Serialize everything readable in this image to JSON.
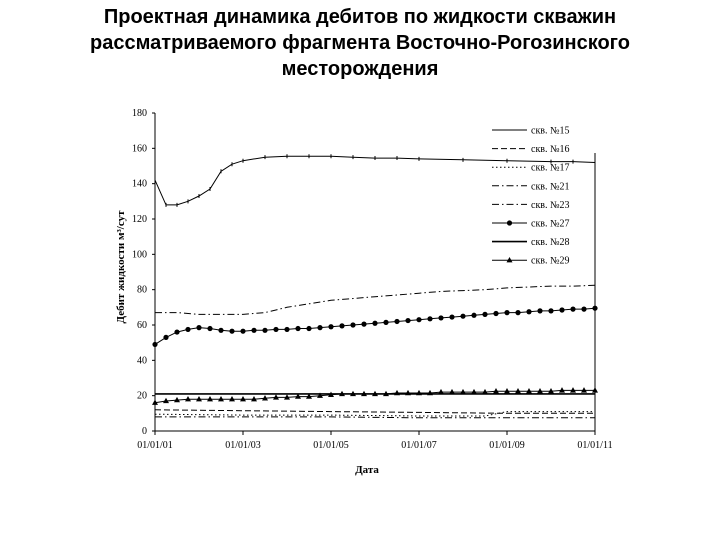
{
  "title_lines": [
    "Проектная динамика дебитов по жидкости скважин",
    "рассматриваемого фрагмента Восточно-Рогозинского",
    "месторождения"
  ],
  "chart_data": {
    "type": "line",
    "xlabel": "Дата",
    "ylabel": "Дебит жидкости м³/сут",
    "ylim": [
      0,
      180
    ],
    "yticks": [
      0,
      20,
      40,
      60,
      80,
      100,
      120,
      140,
      160,
      180
    ],
    "x_tick_labels": [
      "01/01/01",
      "01/01/03",
      "01/01/05",
      "01/01/07",
      "01/01/09",
      "01/01/11"
    ],
    "xlim": [
      2001,
      2011
    ],
    "grid": false,
    "legend_position": "top-right",
    "series": [
      {
        "name": "скв. №15",
        "style": "solid",
        "x": [
          2001.0,
          2001.25,
          2001.5,
          2001.75,
          2002.0,
          2002.25,
          2002.5,
          2002.75,
          2003.0,
          2003.5,
          2004.0,
          2004.5,
          2005.0,
          2005.5,
          2006.0,
          2006.5,
          2007.0,
          2008.0,
          2009.0,
          2010.0,
          2010.5,
          2011.0
        ],
        "y": [
          142,
          128,
          128,
          130,
          133,
          137,
          147,
          151,
          153,
          155,
          155.5,
          155.5,
          155.5,
          155,
          154.5,
          154.5,
          154,
          153.5,
          153,
          152.5,
          152.5,
          152
        ]
      },
      {
        "name": "скв. №16",
        "style": "dash",
        "x": [
          2001.0,
          2003.0,
          2005.0,
          2007.0,
          2009.0,
          2011.0
        ],
        "y": [
          12,
          11.5,
          11,
          10.5,
          10,
          10
        ]
      },
      {
        "name": "скв. №17",
        "style": "dot",
        "x": [
          2001.0,
          2003.0,
          2005.0,
          2007.0,
          2008.5,
          2009.0,
          2011.0
        ],
        "y": [
          9.5,
          9,
          9,
          8.5,
          8.5,
          11,
          11
        ]
      },
      {
        "name": "скв. №21",
        "style": "dashdot",
        "x": [
          2001.0,
          2003.0,
          2005.0,
          2007.0,
          2009.0,
          2011.0
        ],
        "y": [
          8,
          8,
          8,
          7.5,
          7.5,
          7.5
        ]
      },
      {
        "name": "скв. №23",
        "style": "dashdot",
        "x": [
          2001.0,
          2001.5,
          2002.0,
          2002.5,
          2003.0,
          2003.5,
          2004.0,
          2004.5,
          2005.0,
          2005.5,
          2006.0,
          2006.5,
          2007.0,
          2007.5,
          2008.0,
          2008.5,
          2009.0,
          2009.5,
          2010.0,
          2010.5,
          2011.0
        ],
        "y": [
          67,
          67,
          66,
          66,
          66,
          67,
          70,
          72,
          74,
          75,
          76,
          77,
          78,
          79,
          79.5,
          80,
          81,
          81.5,
          82,
          82,
          82.5
        ]
      },
      {
        "name": "скв. №27",
        "style": "circle",
        "x": [
          2001.0,
          2001.25,
          2001.5,
          2001.75,
          2002.0,
          2002.25,
          2002.5,
          2002.75,
          2003.0,
          2003.25,
          2003.5,
          2003.75,
          2004.0,
          2004.25,
          2004.5,
          2004.75,
          2005.0,
          2005.25,
          2005.5,
          2005.75,
          2006.0,
          2006.25,
          2006.5,
          2006.75,
          2007.0,
          2007.25,
          2007.5,
          2007.75,
          2008.0,
          2008.25,
          2008.5,
          2008.75,
          2009.0,
          2009.25,
          2009.5,
          2009.75,
          2010.0,
          2010.25,
          2010.5,
          2010.75,
          2011.0
        ],
        "y": [
          49,
          53,
          56,
          57.5,
          58.5,
          58,
          57,
          56.5,
          56.5,
          57,
          57,
          57.5,
          57.5,
          58,
          58,
          58.5,
          59,
          59.5,
          60,
          60.5,
          61,
          61.5,
          62,
          62.5,
          63,
          63.5,
          64,
          64.5,
          65,
          65.5,
          66,
          66.5,
          67,
          67,
          67.5,
          68,
          68,
          68.5,
          69,
          69,
          69.5
        ]
      },
      {
        "name": "скв. №28",
        "style": "solid-thick",
        "x": [
          2001.0,
          2003.0,
          2005.0,
          2007.0,
          2009.0,
          2011.0
        ],
        "y": [
          21,
          21,
          21,
          21,
          21,
          21
        ]
      },
      {
        "name": "скв. №29",
        "style": "triangle",
        "x": [
          2001.0,
          2001.25,
          2001.5,
          2001.75,
          2002.0,
          2002.25,
          2002.5,
          2002.75,
          2003.0,
          2003.25,
          2003.5,
          2003.75,
          2004.0,
          2004.25,
          2004.5,
          2004.75,
          2005.0,
          2005.25,
          2005.5,
          2005.75,
          2006.0,
          2006.25,
          2006.5,
          2006.75,
          2007.0,
          2007.25,
          2007.5,
          2007.75,
          2008.0,
          2008.25,
          2008.5,
          2008.75,
          2009.0,
          2009.25,
          2009.5,
          2009.75,
          2010.0,
          2010.25,
          2010.5,
          2010.75,
          2011.0
        ],
        "y": [
          16,
          17,
          17.5,
          18,
          18,
          18,
          18,
          18,
          18,
          18,
          18.5,
          19,
          19,
          19.5,
          19.5,
          20,
          20.5,
          21,
          21,
          21,
          21,
          21,
          21.5,
          21.5,
          21.5,
          21.5,
          22,
          22,
          22,
          22,
          22,
          22.5,
          22.5,
          22.5,
          22.5,
          22.5,
          22.5,
          23,
          23,
          23,
          23
        ]
      }
    ]
  }
}
